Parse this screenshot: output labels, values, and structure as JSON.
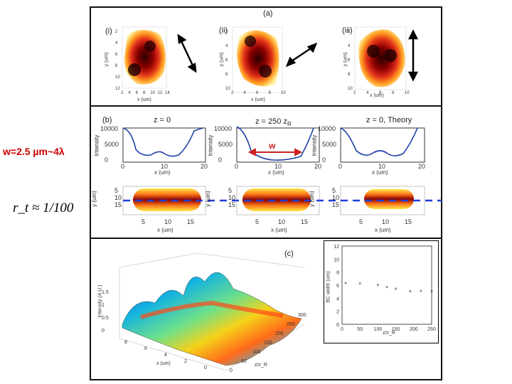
{
  "left_annotations": {
    "width_label": "w=2.5 µm~4λ",
    "ratio_label": "r_t ≈ 1/100"
  },
  "panel_a": {
    "label": "(a)",
    "subpanels": [
      {
        "tag": "(i)",
        "ylabel": "y (um)",
        "xlabel": "x (um)",
        "xticks": [
          "2",
          "4",
          "6",
          "8",
          "10",
          "12",
          "14"
        ],
        "yticks": [
          "2",
          "4",
          "6",
          "8",
          "10",
          "12"
        ]
      },
      {
        "tag": "(ii)",
        "ylabel": "y (um)",
        "xlabel": "x (um)",
        "xticks": [
          "2",
          "4",
          "6",
          "8",
          "10"
        ],
        "yticks": [
          "2",
          "4",
          "6",
          "8",
          "10"
        ]
      },
      {
        "tag": "(iii)",
        "ylabel": "y (um)",
        "xlabel": "x (um)",
        "xticks": [
          "2",
          "4",
          "6",
          "8",
          "10"
        ],
        "yticks": [
          "2",
          "4",
          "6",
          "8",
          "10"
        ]
      }
    ]
  },
  "panel_b": {
    "label": "(b)",
    "titles": [
      "z = 0",
      "z = 250 z",
      "z = 0, Theory"
    ],
    "title_subscript": "R",
    "width_marker": "w",
    "profile_ylabel": "Intensity",
    "profile_xlabel": "x (um)",
    "profile_yticks": [
      "10000",
      "5000",
      "0"
    ],
    "profile_xticks": [
      "0",
      "10",
      "20"
    ],
    "image_ylabel": "y (um)",
    "image_xlabel": "x (um)",
    "image_yticks": [
      "5",
      "10",
      "15"
    ],
    "image_xticks": [
      "5",
      "10",
      "15"
    ]
  },
  "panel_c": {
    "label": "(c)",
    "surface_zlabel": "Intensity (A.U.)",
    "surface_xlabel": "z/z_R",
    "surface_ylabel": "x (um)",
    "zticks": [
      "1.5",
      "1",
      "0.5",
      "0"
    ],
    "xticks": [
      "0",
      "50",
      "100",
      "150",
      "200",
      "250",
      "300"
    ],
    "yticks": [
      "8",
      "6",
      "4",
      "2",
      "0"
    ]
  },
  "chart_data": {
    "type": "scatter",
    "title": "",
    "xlabel": "z/z_R",
    "ylabel": "BC width (um)",
    "xlim": [
      0,
      250
    ],
    "ylim": [
      0,
      12
    ],
    "xticks": [
      0,
      50,
      100,
      150,
      200,
      250
    ],
    "yticks": [
      0,
      2,
      4,
      6,
      8,
      10,
      12
    ],
    "x": [
      10,
      50,
      100,
      125,
      150,
      190,
      220,
      250
    ],
    "y": [
      6.3,
      6.2,
      6.0,
      5.7,
      5.4,
      5.0,
      5.1,
      5.0
    ]
  },
  "colors": {
    "profile_line": "#1f3fa8",
    "dashed_line": "#1f3fd6",
    "arrow": "#cc2222",
    "heat_core": "#3a0000",
    "heat_edge": "#ffe84a"
  }
}
